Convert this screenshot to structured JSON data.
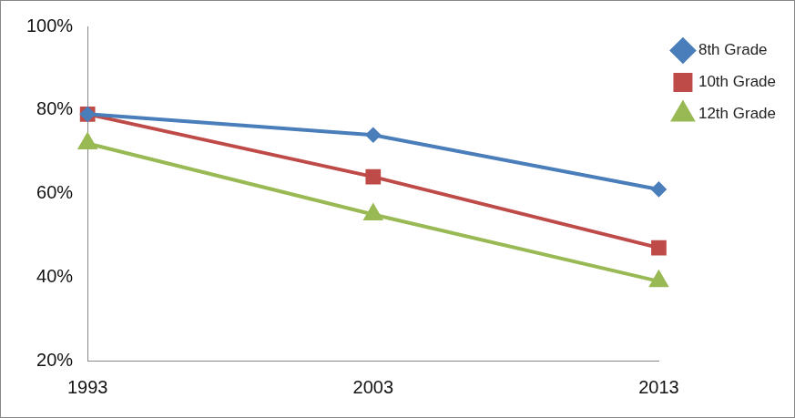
{
  "chart_data": {
    "type": "line",
    "categories": [
      "1993",
      "2003",
      "2013"
    ],
    "series": [
      {
        "name": "8th Grade",
        "color": "#4a7ebb",
        "marker": "diamond",
        "values": [
          79,
          74,
          61
        ]
      },
      {
        "name": "10th Grade",
        "color": "#be4b48",
        "marker": "square",
        "values": [
          79,
          64,
          47
        ]
      },
      {
        "name": "12th Grade",
        "color": "#98b954",
        "marker": "triangle",
        "values": [
          72,
          55,
          39
        ]
      }
    ],
    "ylim": [
      20,
      100
    ],
    "yticks": [
      {
        "value": 20,
        "label": "20%"
      },
      {
        "value": 40,
        "label": "40%"
      },
      {
        "value": 60,
        "label": "60%"
      },
      {
        "value": 80,
        "label": "80%"
      },
      {
        "value": 100,
        "label": "100%"
      }
    ],
    "grid": false,
    "legend": "right"
  }
}
